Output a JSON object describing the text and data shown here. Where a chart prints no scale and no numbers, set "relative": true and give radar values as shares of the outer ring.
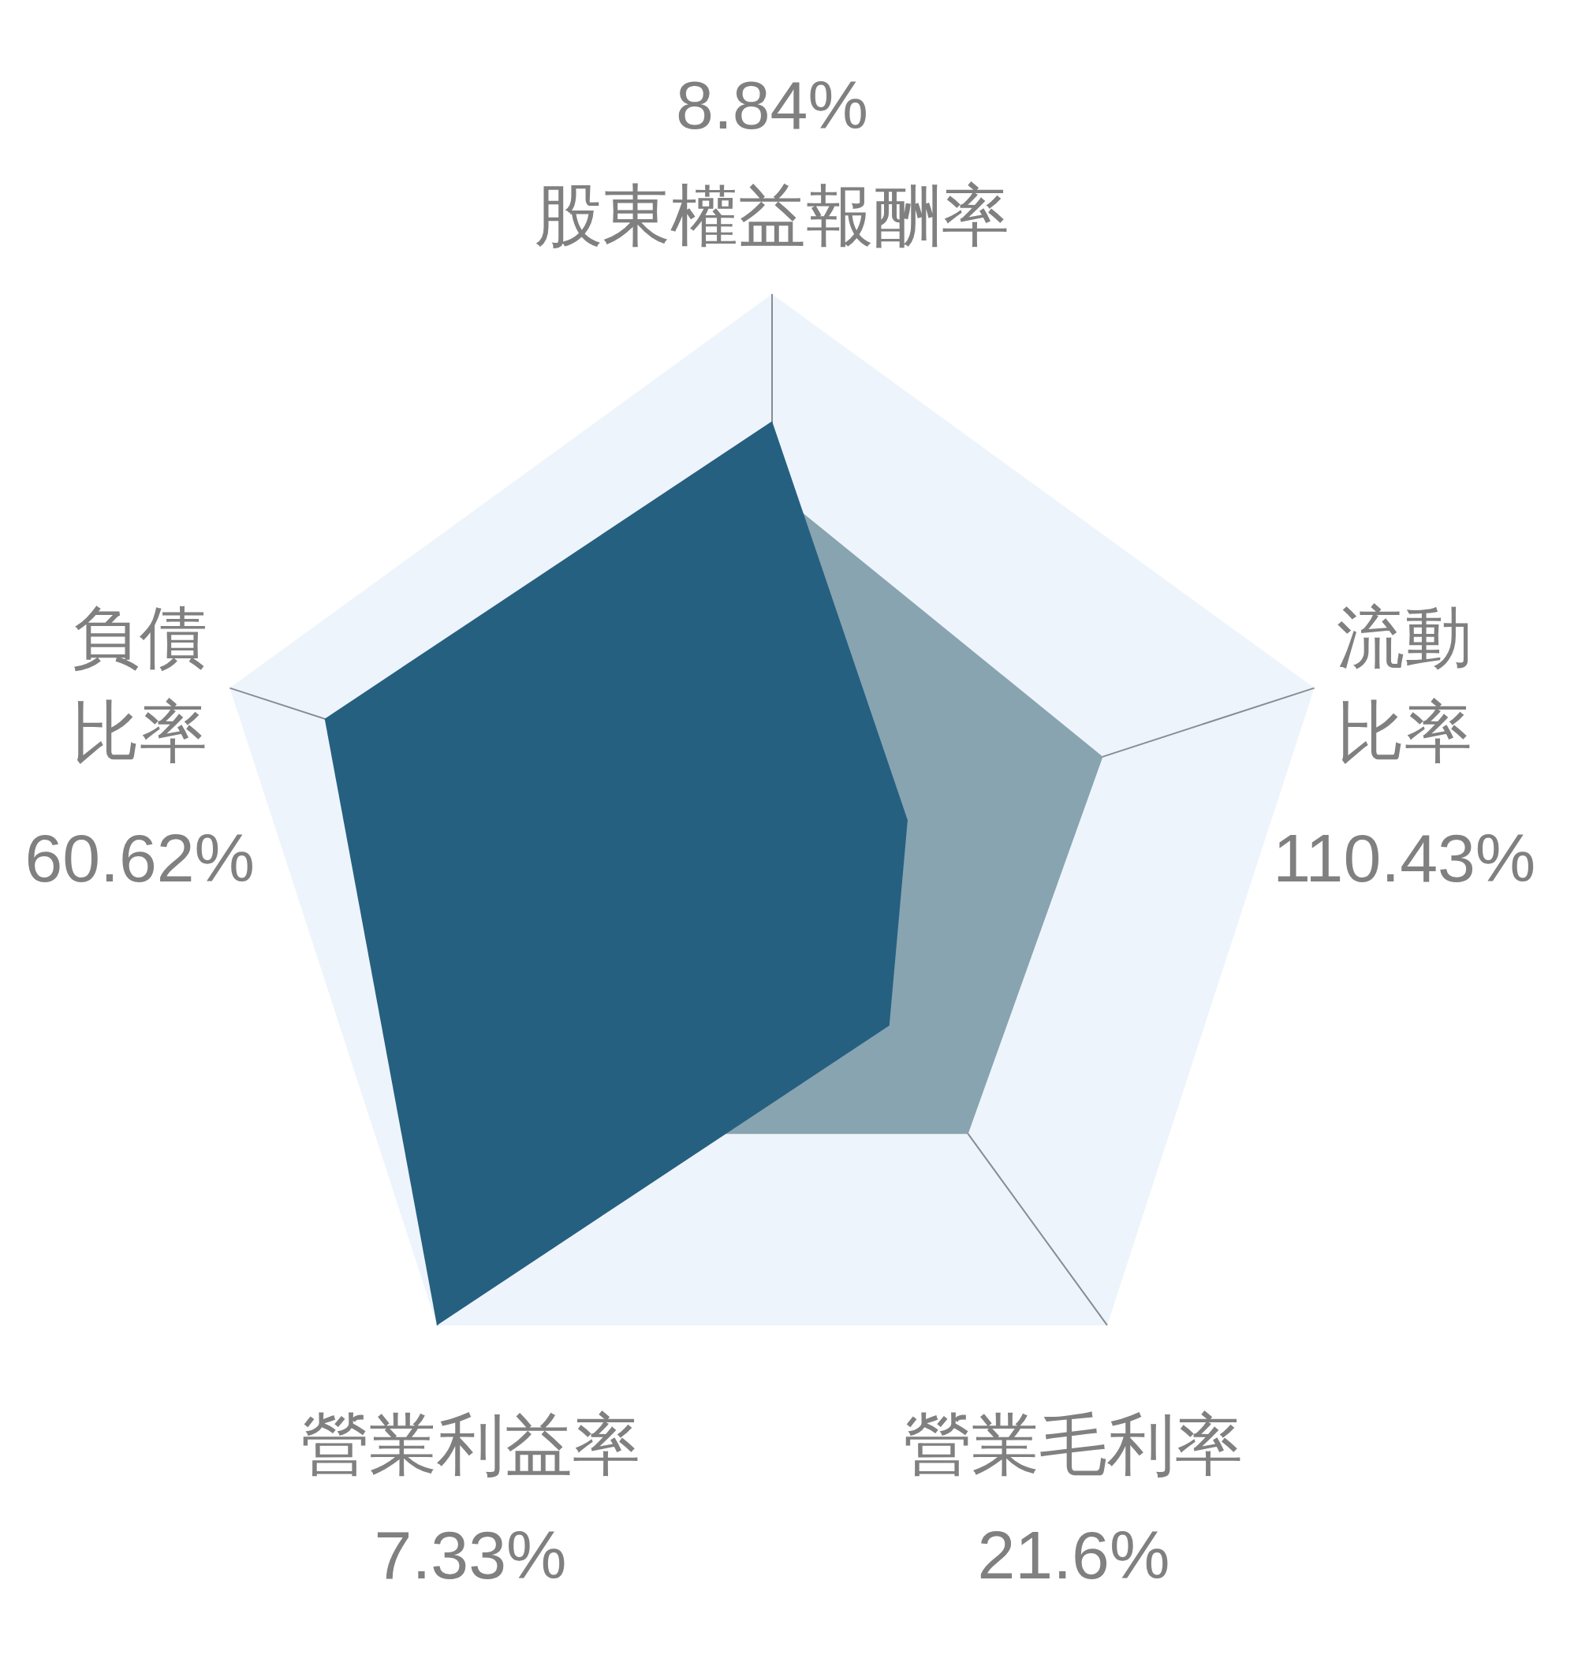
{
  "chart_data": {
    "type": "radar",
    "relative": true,
    "categories": [
      "股東權益報酬率",
      "流動比率",
      "營業毛利率",
      "營業利益率",
      "負債比率"
    ],
    "annotations": [
      "8.84%",
      "110.43%",
      "21.6%",
      "7.33%",
      "60.62%"
    ],
    "series": [
      {
        "color": "#88a4b1",
        "values": [
          0.66,
          0.61,
          0.585,
          0.585,
          0.6
        ]
      },
      {
        "color": "#256080",
        "values": [
          0.777,
          0.25,
          0.35,
          1.0,
          0.825
        ]
      }
    ]
  }
}
